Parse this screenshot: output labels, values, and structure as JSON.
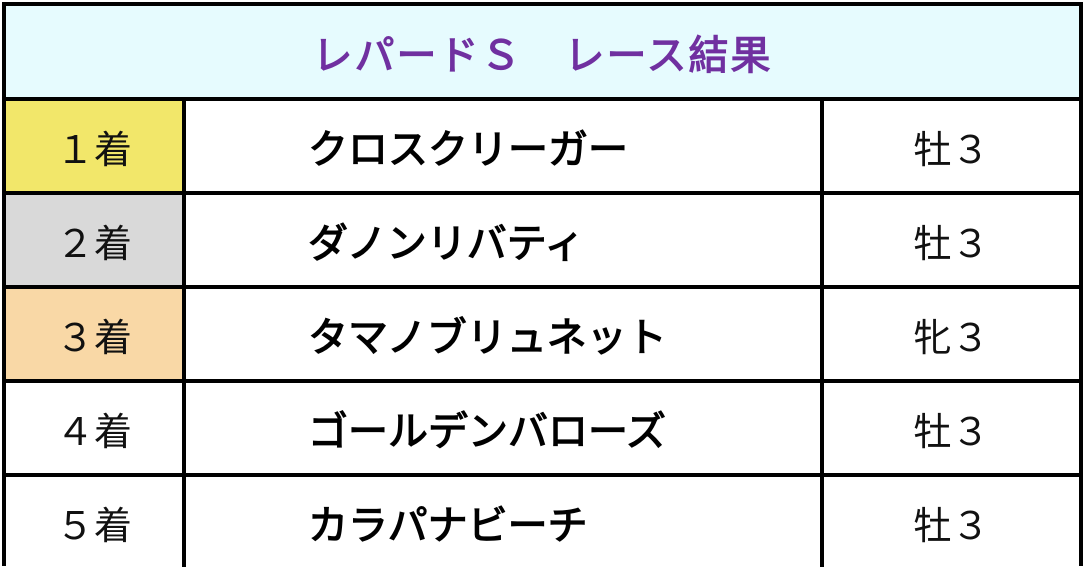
{
  "title": "レパードＳ　レース結果",
  "rows": [
    {
      "place": "１着",
      "horse": "クロスクリーガー",
      "sex_age": "牡３",
      "color": "#f2e76a"
    },
    {
      "place": "２着",
      "horse": "ダノンリバティ",
      "sex_age": "牡３",
      "color": "#d9d9d9"
    },
    {
      "place": "３着",
      "horse": "タマノブリュネット",
      "sex_age": "牝３",
      "color": "#f9d8a6"
    },
    {
      "place": "４着",
      "horse": "ゴールデンバローズ",
      "sex_age": "牡３",
      "color": "#ffffff"
    },
    {
      "place": "５着",
      "horse": "カラパナビーチ",
      "sex_age": "牡３",
      "color": "#ffffff"
    }
  ],
  "colors": {
    "header_bg": "#e6fbfe",
    "title": "#7030a0"
  }
}
